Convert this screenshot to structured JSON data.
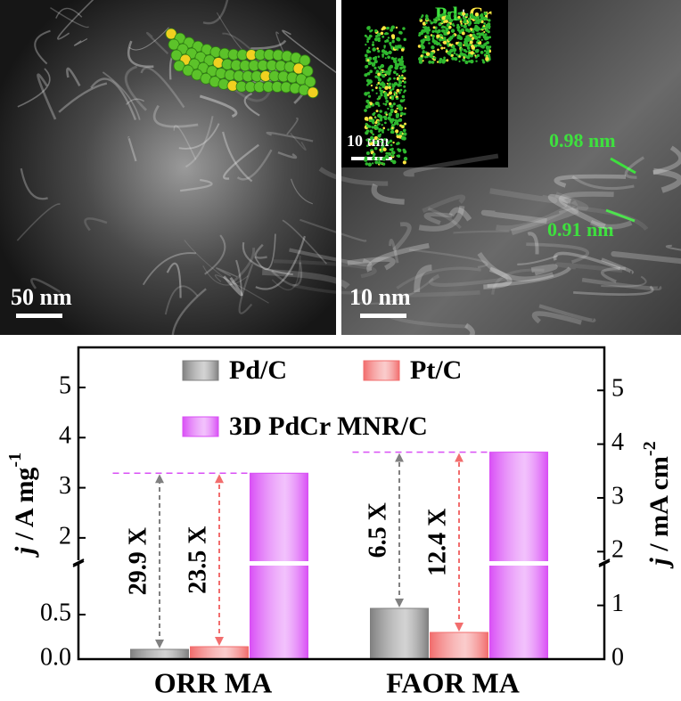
{
  "images": [
    {
      "scale_bar": "50 nm"
    },
    {
      "scale_bar": "10 nm",
      "inset_label": [
        "Pd",
        "+",
        "Cr"
      ],
      "inset_scale_bar": "10 nm",
      "spacings": [
        "0.98 nm",
        "0.91 nm"
      ]
    }
  ],
  "chart_data": {
    "type": "bar",
    "categories": [
      "ORR MA",
      "FAOR MA"
    ],
    "series": [
      {
        "name": "Pd/C",
        "color": "#808080",
        "values": [
          0.11,
          0.57
        ]
      },
      {
        "name": "Pt/C",
        "color": "#f26d6d",
        "values": [
          0.14,
          0.3
        ]
      },
      {
        "name": "3D PdCr MNR/C",
        "color": "#d94ff5",
        "values": [
          3.29,
          3.71
        ]
      }
    ],
    "ylabel": [
      "j",
      " / A mg",
      "-1"
    ],
    "y2label": [
      "j",
      " / mA cm",
      "-2"
    ],
    "ylim": [
      0,
      5.8
    ],
    "ybreak": [
      1.1,
      1.5
    ],
    "yticks": [
      {
        "value": 0,
        "label": "0.0"
      },
      0.5,
      2,
      3,
      4,
      5
    ],
    "y2lim": [
      0,
      5.8
    ],
    "y2ticks": [
      0,
      1,
      2,
      3,
      4,
      5
    ],
    "annotations": [
      {
        "text": "29.9 X",
        "category": 0,
        "from": 0,
        "to": 2
      },
      {
        "text": "23.5 X",
        "category": 0,
        "from": 1,
        "to": 2
      },
      {
        "text": "6.5 X",
        "category": 1,
        "from": 0,
        "to": 2
      },
      {
        "text": "12.4 X",
        "category": 1,
        "from": 1,
        "to": 2
      }
    ],
    "legend": "top",
    "grid": false
  }
}
